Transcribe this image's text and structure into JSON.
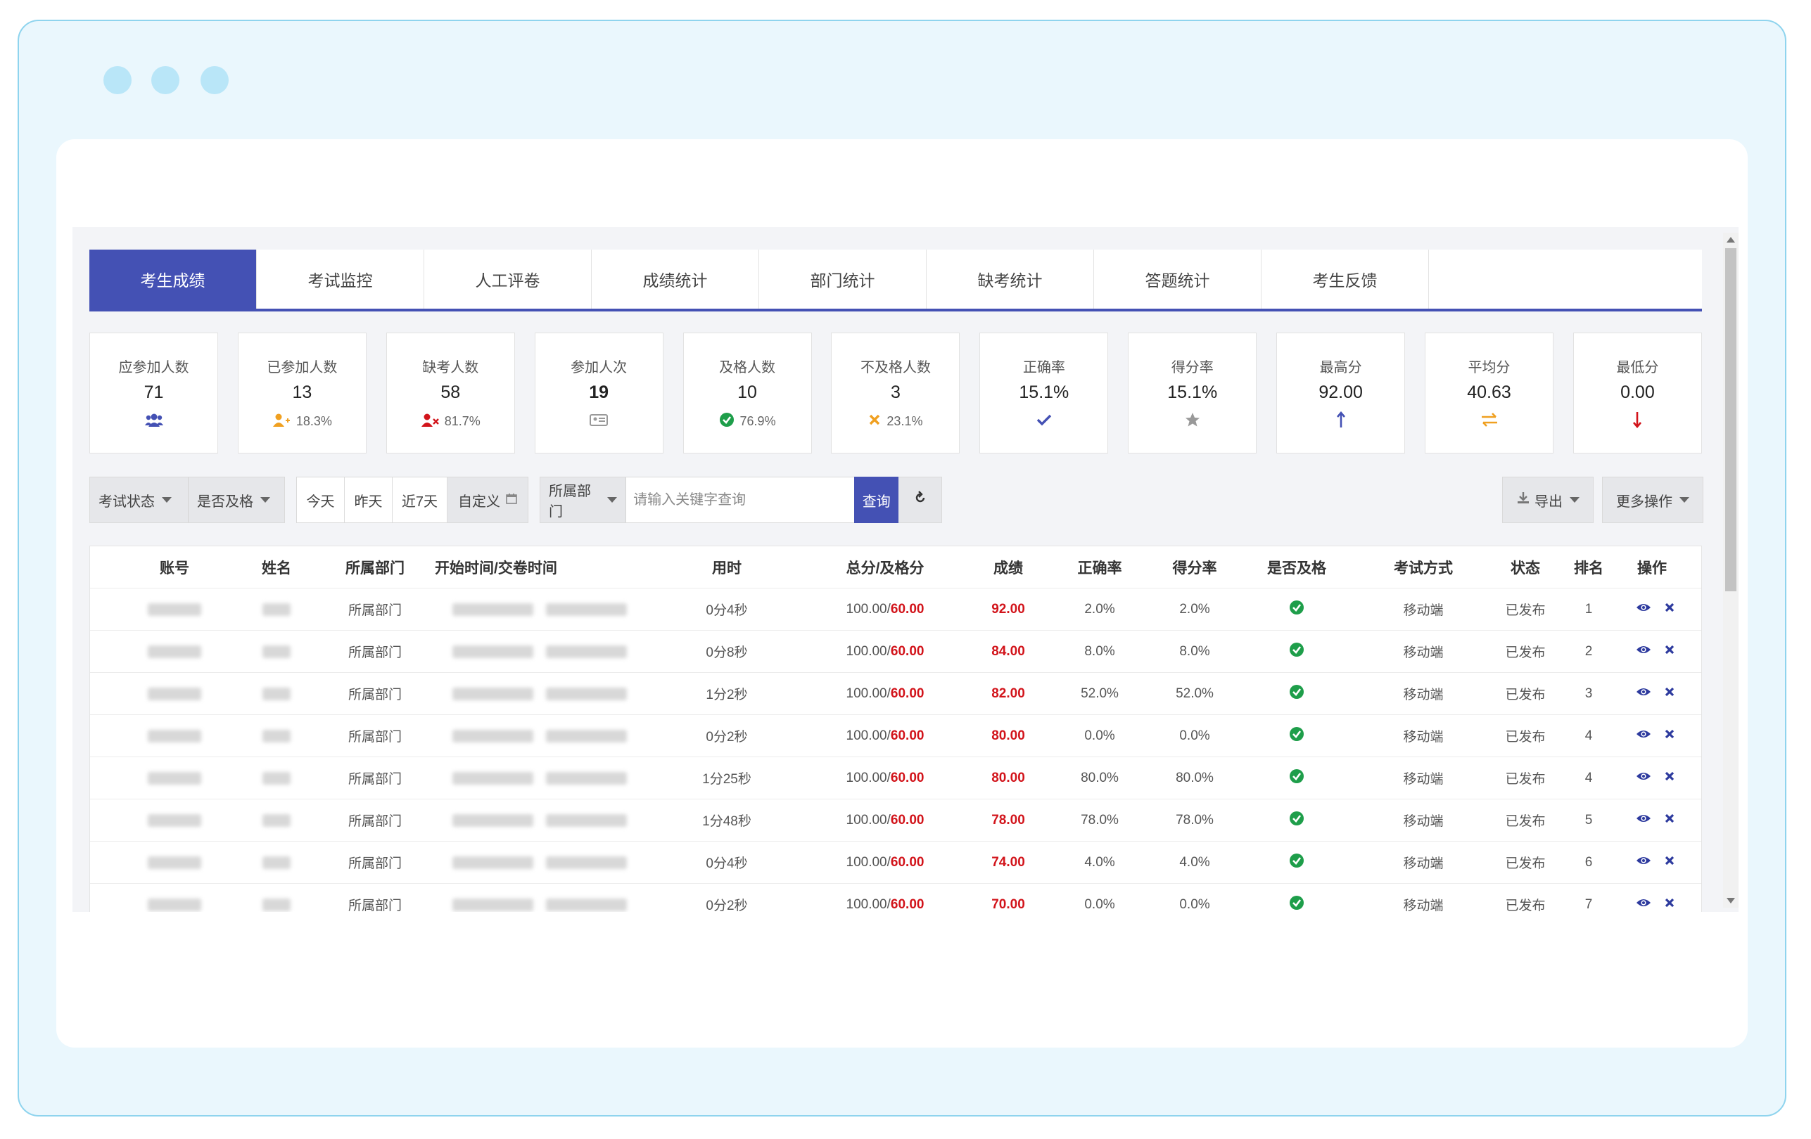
{
  "tabs": [
    "考生成绩",
    "考试监控",
    "人工评卷",
    "成绩统计",
    "部门统计",
    "缺考统计",
    "答题统计",
    "考生反馈"
  ],
  "stats": [
    {
      "label": "应参加人数",
      "value": "71",
      "sub": "",
      "icon": "users-icon",
      "color": "#4451b4"
    },
    {
      "label": "已参加人数",
      "value": "13",
      "sub": "18.3%",
      "icon": "user-plus-icon",
      "color": "#f0a020"
    },
    {
      "label": "缺考人数",
      "value": "58",
      "sub": "81.7%",
      "icon": "user-times-icon",
      "color": "#d2141b"
    },
    {
      "label": "参加人次",
      "value": "19",
      "sub": "",
      "icon": "id-card-icon",
      "color": "#999999"
    },
    {
      "label": "及格人数",
      "value": "10",
      "sub": "76.9%",
      "icon": "check-circle-icon",
      "color": "#1e9e4a"
    },
    {
      "label": "不及格人数",
      "value": "3",
      "sub": "23.1%",
      "icon": "times-icon",
      "color": "#f0a020"
    },
    {
      "label": "正确率",
      "value": "15.1%",
      "sub": "",
      "icon": "check-icon",
      "color": "#4451b4"
    },
    {
      "label": "得分率",
      "value": "15.1%",
      "sub": "",
      "icon": "star-icon",
      "color": "#999999"
    },
    {
      "label": "最高分",
      "value": "92.00",
      "sub": "",
      "icon": "arrow-up-icon",
      "color": "#4451b4"
    },
    {
      "label": "平均分",
      "value": "40.63",
      "sub": "",
      "icon": "exchange-icon",
      "color": "#f0a020"
    },
    {
      "label": "最低分",
      "value": "0.00",
      "sub": "",
      "icon": "arrow-down-icon",
      "color": "#d2141b"
    }
  ],
  "filters": {
    "exam_status": "考试状态",
    "is_pass": "是否及格",
    "today": "今天",
    "yesterday": "昨天",
    "last7": "近7天",
    "custom": "自定义",
    "dept": "所属部门",
    "search_placeholder": "请输入关键字查询",
    "query": "查询",
    "export": "导出",
    "more": "更多操作"
  },
  "table": {
    "headers": [
      "账号",
      "姓名",
      "所属部门",
      "开始时间/交卷时间",
      "用时",
      "总分/及格分",
      "成绩",
      "正确率",
      "得分率",
      "是否及格",
      "考试方式",
      "状态",
      "排名",
      "操作"
    ],
    "rows": [
      {
        "dept": "所属部门",
        "duration": "0分4秒",
        "total": "100.00/",
        "pass": "60.00",
        "score": "92.00",
        "acc": "2.0%",
        "rate": "2.0%",
        "mode": "移动端",
        "status": "已发布",
        "rank": "1"
      },
      {
        "dept": "所属部门",
        "duration": "0分8秒",
        "total": "100.00/",
        "pass": "60.00",
        "score": "84.00",
        "acc": "8.0%",
        "rate": "8.0%",
        "mode": "移动端",
        "status": "已发布",
        "rank": "2"
      },
      {
        "dept": "所属部门",
        "duration": "1分2秒",
        "total": "100.00/",
        "pass": "60.00",
        "score": "82.00",
        "acc": "52.0%",
        "rate": "52.0%",
        "mode": "移动端",
        "status": "已发布",
        "rank": "3"
      },
      {
        "dept": "所属部门",
        "duration": "0分2秒",
        "total": "100.00/",
        "pass": "60.00",
        "score": "80.00",
        "acc": "0.0%",
        "rate": "0.0%",
        "mode": "移动端",
        "status": "已发布",
        "rank": "4"
      },
      {
        "dept": "所属部门",
        "duration": "1分25秒",
        "total": "100.00/",
        "pass": "60.00",
        "score": "80.00",
        "acc": "80.0%",
        "rate": "80.0%",
        "mode": "移动端",
        "status": "已发布",
        "rank": "4"
      },
      {
        "dept": "所属部门",
        "duration": "1分48秒",
        "total": "100.00/",
        "pass": "60.00",
        "score": "78.00",
        "acc": "78.0%",
        "rate": "78.0%",
        "mode": "移动端",
        "status": "已发布",
        "rank": "5"
      },
      {
        "dept": "所属部门",
        "duration": "0分4秒",
        "total": "100.00/",
        "pass": "60.00",
        "score": "74.00",
        "acc": "4.0%",
        "rate": "4.0%",
        "mode": "移动端",
        "status": "已发布",
        "rank": "6"
      },
      {
        "dept": "所属部门",
        "duration": "0分2秒",
        "total": "100.00/",
        "pass": "60.00",
        "score": "70.00",
        "acc": "0.0%",
        "rate": "0.0%",
        "mode": "移动端",
        "status": "已发布",
        "rank": "7"
      }
    ]
  }
}
